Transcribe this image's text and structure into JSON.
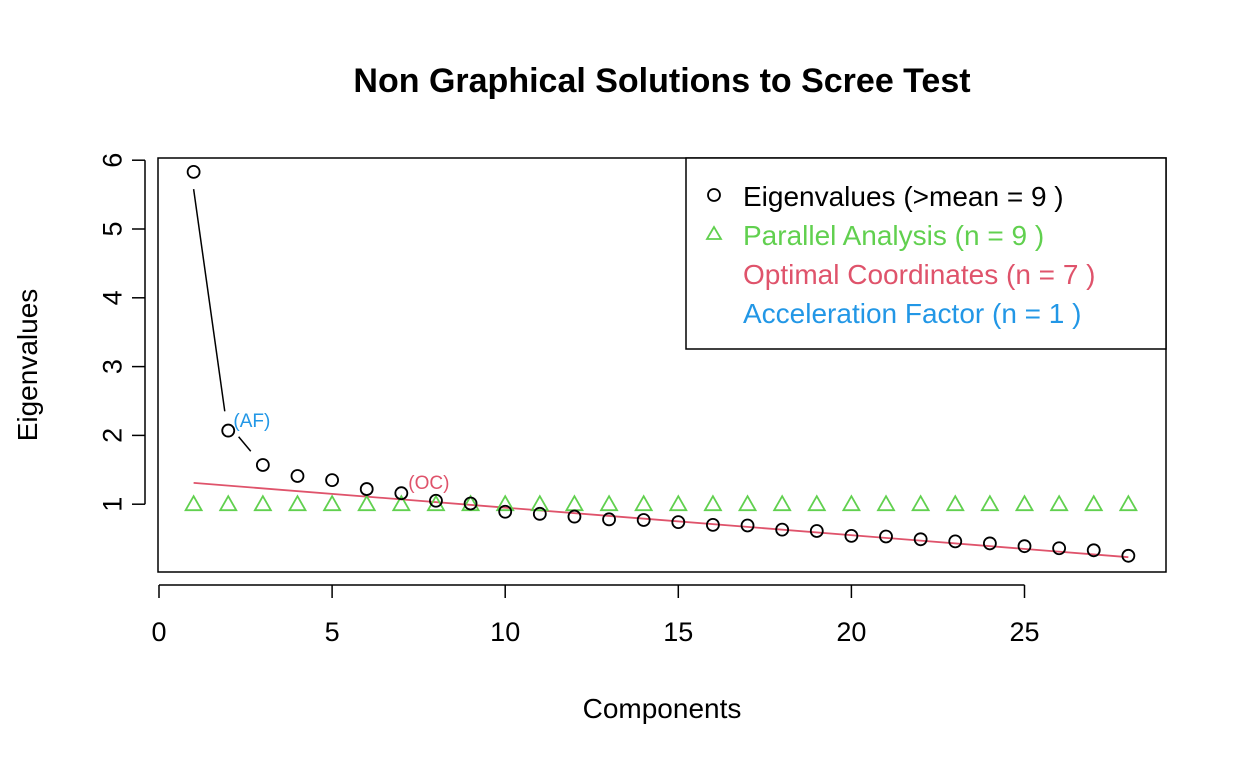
{
  "chart_data": {
    "type": "scatter",
    "title": "Non Graphical Solutions to Scree Test",
    "xlabel": "Components",
    "ylabel": "Eigenvalues",
    "xlim": [
      0,
      29
    ],
    "ylim": [
      0,
      6
    ],
    "x_ticks": [
      0,
      5,
      10,
      15,
      20,
      25
    ],
    "y_ticks": [
      1,
      2,
      3,
      4,
      5,
      6
    ],
    "grid": false,
    "legend_position": "top-right",
    "colors": {
      "eigen": "#000000",
      "parallel": "#61d04f",
      "optimal": "#df536b",
      "acceleration": "#2297e6"
    },
    "x": [
      1,
      2,
      3,
      4,
      5,
      6,
      7,
      8,
      9,
      10,
      11,
      12,
      13,
      14,
      15,
      16,
      17,
      18,
      19,
      20,
      21,
      22,
      23,
      24,
      25,
      26,
      27,
      28
    ],
    "series": [
      {
        "name": "Eigenvalues (>mean  =  9 )",
        "marker": "circle",
        "values": [
          5.83,
          2.07,
          1.57,
          1.41,
          1.35,
          1.22,
          1.16,
          1.05,
          1.01,
          0.89,
          0.86,
          0.82,
          0.78,
          0.77,
          0.74,
          0.7,
          0.69,
          0.63,
          0.61,
          0.54,
          0.53,
          0.49,
          0.46,
          0.43,
          0.39,
          0.36,
          0.33,
          0.25
        ]
      },
      {
        "name": "Parallel Analysis (n =  9 )",
        "marker": "triangle",
        "values": [
          1.0,
          1.0,
          1.0,
          1.0,
          1.0,
          1.0,
          1.0,
          1.0,
          1.0,
          1.0,
          1.0,
          1.0,
          1.0,
          1.0,
          1.0,
          1.0,
          1.0,
          1.0,
          1.0,
          1.0,
          1.0,
          1.0,
          1.0,
          1.0,
          1.0,
          1.0,
          1.0,
          1.0
        ]
      },
      {
        "name": "Optimal Coordinates (n =  7 )",
        "marker": "line",
        "line": {
          "x": [
            1,
            28
          ],
          "y": [
            1.31,
            0.23
          ]
        }
      },
      {
        "name": "Acceleration Factor (n =  1 )",
        "marker": "segment",
        "segments": [
          {
            "x": [
              1.0,
              1.9
            ],
            "y": [
              5.58,
              2.35
            ]
          },
          {
            "x": [
              2.3,
              2.65
            ],
            "y": [
              1.98,
              1.77
            ]
          }
        ]
      }
    ],
    "annotations": [
      {
        "text": "(AF)",
        "x": 2.15,
        "y": 2.12,
        "color": "#2297e6"
      },
      {
        "text": "(OC)",
        "x": 7.2,
        "y": 1.22,
        "color": "#df536b"
      }
    ]
  }
}
